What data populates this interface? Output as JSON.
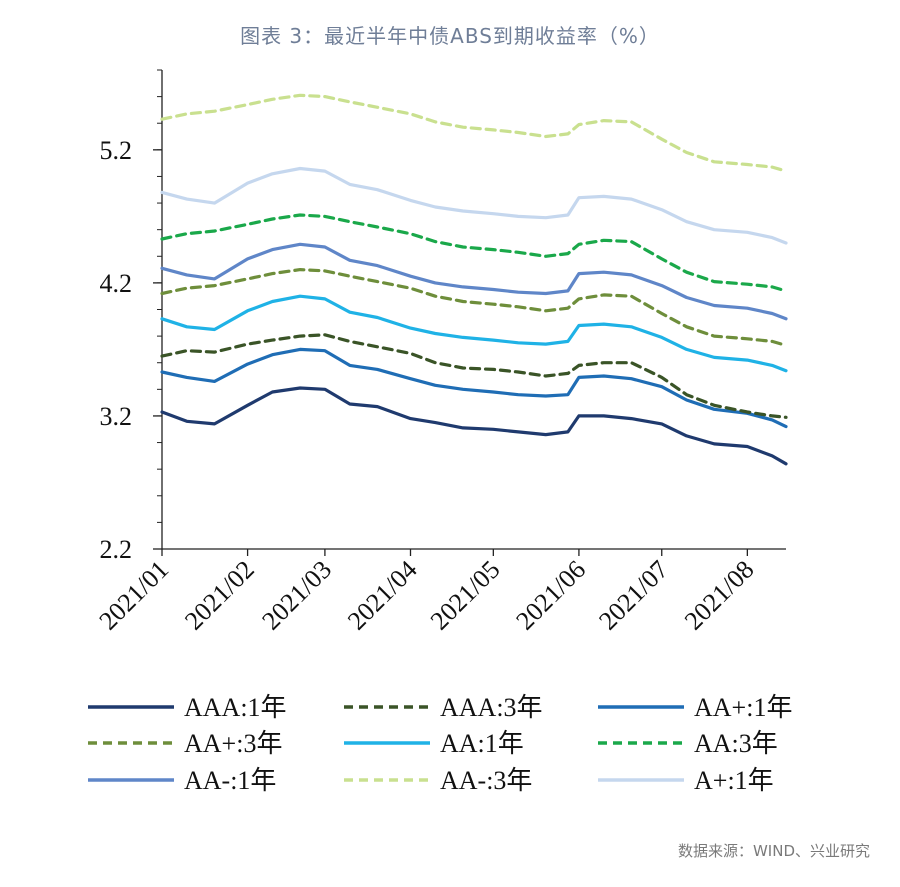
{
  "title": "图表 3：最近半年中债ABS到期收益率（%）",
  "source": "数据来源：WIND、兴业研究",
  "chart_data": {
    "type": "line",
    "title": "图表 3：最近半年中债ABS到期收益率（%）",
    "xlabel": "",
    "ylabel": "",
    "ylim": [
      2.2,
      5.8
    ],
    "yticks": [
      2.2,
      3.2,
      4.2,
      5.2
    ],
    "ytick_labels": [
      "2.2",
      "3.2",
      "4.2",
      "5.2"
    ],
    "xlim": [
      "2021/01/01",
      "2021/08/15"
    ],
    "xticks": [
      "2021/01",
      "2021/02",
      "2021/03",
      "2021/04",
      "2021/05",
      "2021/06",
      "2021/07",
      "2021/08"
    ],
    "grid": false,
    "legend_position": "bottom",
    "x": [
      "2021/01/01",
      "2021/01/10",
      "2021/01/20",
      "2021/02/01",
      "2021/02/10",
      "2021/02/20",
      "2021/03/01",
      "2021/03/10",
      "2021/03/20",
      "2021/04/01",
      "2021/04/10",
      "2021/04/20",
      "2021/05/01",
      "2021/05/10",
      "2021/05/20",
      "2021/05/28",
      "2021/06/01",
      "2021/06/10",
      "2021/06/20",
      "2021/07/01",
      "2021/07/10",
      "2021/07/20",
      "2021/08/01",
      "2021/08/10",
      "2021/08/15"
    ],
    "series": [
      {
        "name": "AAA:1年",
        "color": "#1f3a6e",
        "dash": false,
        "values": [
          3.23,
          3.16,
          3.14,
          3.28,
          3.38,
          3.41,
          3.4,
          3.29,
          3.27,
          3.18,
          3.15,
          3.11,
          3.1,
          3.08,
          3.06,
          3.08,
          3.2,
          3.2,
          3.18,
          3.14,
          3.05,
          2.99,
          2.97,
          2.9,
          2.84
        ]
      },
      {
        "name": "AAA:3年",
        "color": "#3a5427",
        "dash": true,
        "values": [
          3.65,
          3.69,
          3.68,
          3.74,
          3.77,
          3.8,
          3.81,
          3.76,
          3.72,
          3.67,
          3.6,
          3.56,
          3.55,
          3.53,
          3.5,
          3.52,
          3.58,
          3.6,
          3.6,
          3.49,
          3.36,
          3.28,
          3.23,
          3.2,
          3.19
        ]
      },
      {
        "name": "AA+:1年",
        "color": "#1f6db5",
        "dash": false,
        "values": [
          3.53,
          3.49,
          3.46,
          3.59,
          3.66,
          3.7,
          3.69,
          3.58,
          3.55,
          3.48,
          3.43,
          3.4,
          3.38,
          3.36,
          3.35,
          3.36,
          3.49,
          3.5,
          3.48,
          3.42,
          3.32,
          3.25,
          3.22,
          3.17,
          3.12
        ]
      },
      {
        "name": "AA+:3年",
        "color": "#6e8e3b",
        "dash": true,
        "values": [
          4.12,
          4.16,
          4.18,
          4.23,
          4.27,
          4.3,
          4.29,
          4.25,
          4.21,
          4.16,
          4.1,
          4.06,
          4.04,
          4.02,
          3.99,
          4.01,
          4.08,
          4.11,
          4.1,
          3.97,
          3.87,
          3.8,
          3.78,
          3.76,
          3.73
        ]
      },
      {
        "name": "AA:1年",
        "color": "#1fb2e6",
        "dash": false,
        "values": [
          3.93,
          3.87,
          3.85,
          3.99,
          4.06,
          4.1,
          4.08,
          3.98,
          3.94,
          3.86,
          3.82,
          3.79,
          3.77,
          3.75,
          3.74,
          3.76,
          3.88,
          3.89,
          3.87,
          3.79,
          3.7,
          3.64,
          3.62,
          3.58,
          3.54
        ]
      },
      {
        "name": "AA:3年",
        "color": "#1aa84a",
        "dash": true,
        "values": [
          4.53,
          4.57,
          4.59,
          4.64,
          4.68,
          4.71,
          4.7,
          4.66,
          4.62,
          4.57,
          4.51,
          4.47,
          4.45,
          4.43,
          4.4,
          4.42,
          4.49,
          4.52,
          4.51,
          4.38,
          4.28,
          4.21,
          4.19,
          4.17,
          4.14
        ]
      },
      {
        "name": "AA-:1年",
        "color": "#5f86c8",
        "dash": false,
        "values": [
          4.31,
          4.26,
          4.23,
          4.38,
          4.45,
          4.49,
          4.47,
          4.37,
          4.33,
          4.25,
          4.2,
          4.17,
          4.15,
          4.13,
          4.12,
          4.14,
          4.27,
          4.28,
          4.26,
          4.18,
          4.09,
          4.03,
          4.01,
          3.97,
          3.93
        ]
      },
      {
        "name": "AA-:3年",
        "color": "#c9e08f",
        "dash": true,
        "values": [
          5.43,
          5.47,
          5.49,
          5.54,
          5.58,
          5.61,
          5.6,
          5.56,
          5.52,
          5.47,
          5.41,
          5.37,
          5.35,
          5.33,
          5.3,
          5.32,
          5.39,
          5.42,
          5.41,
          5.28,
          5.18,
          5.11,
          5.09,
          5.07,
          5.04
        ]
      },
      {
        "name": "A+:1年",
        "color": "#c5d7ee",
        "dash": false,
        "values": [
          4.88,
          4.83,
          4.8,
          4.95,
          5.02,
          5.06,
          5.04,
          4.94,
          4.9,
          4.82,
          4.77,
          4.74,
          4.72,
          4.7,
          4.69,
          4.71,
          4.84,
          4.85,
          4.83,
          4.75,
          4.66,
          4.6,
          4.58,
          4.54,
          4.5
        ]
      }
    ]
  }
}
